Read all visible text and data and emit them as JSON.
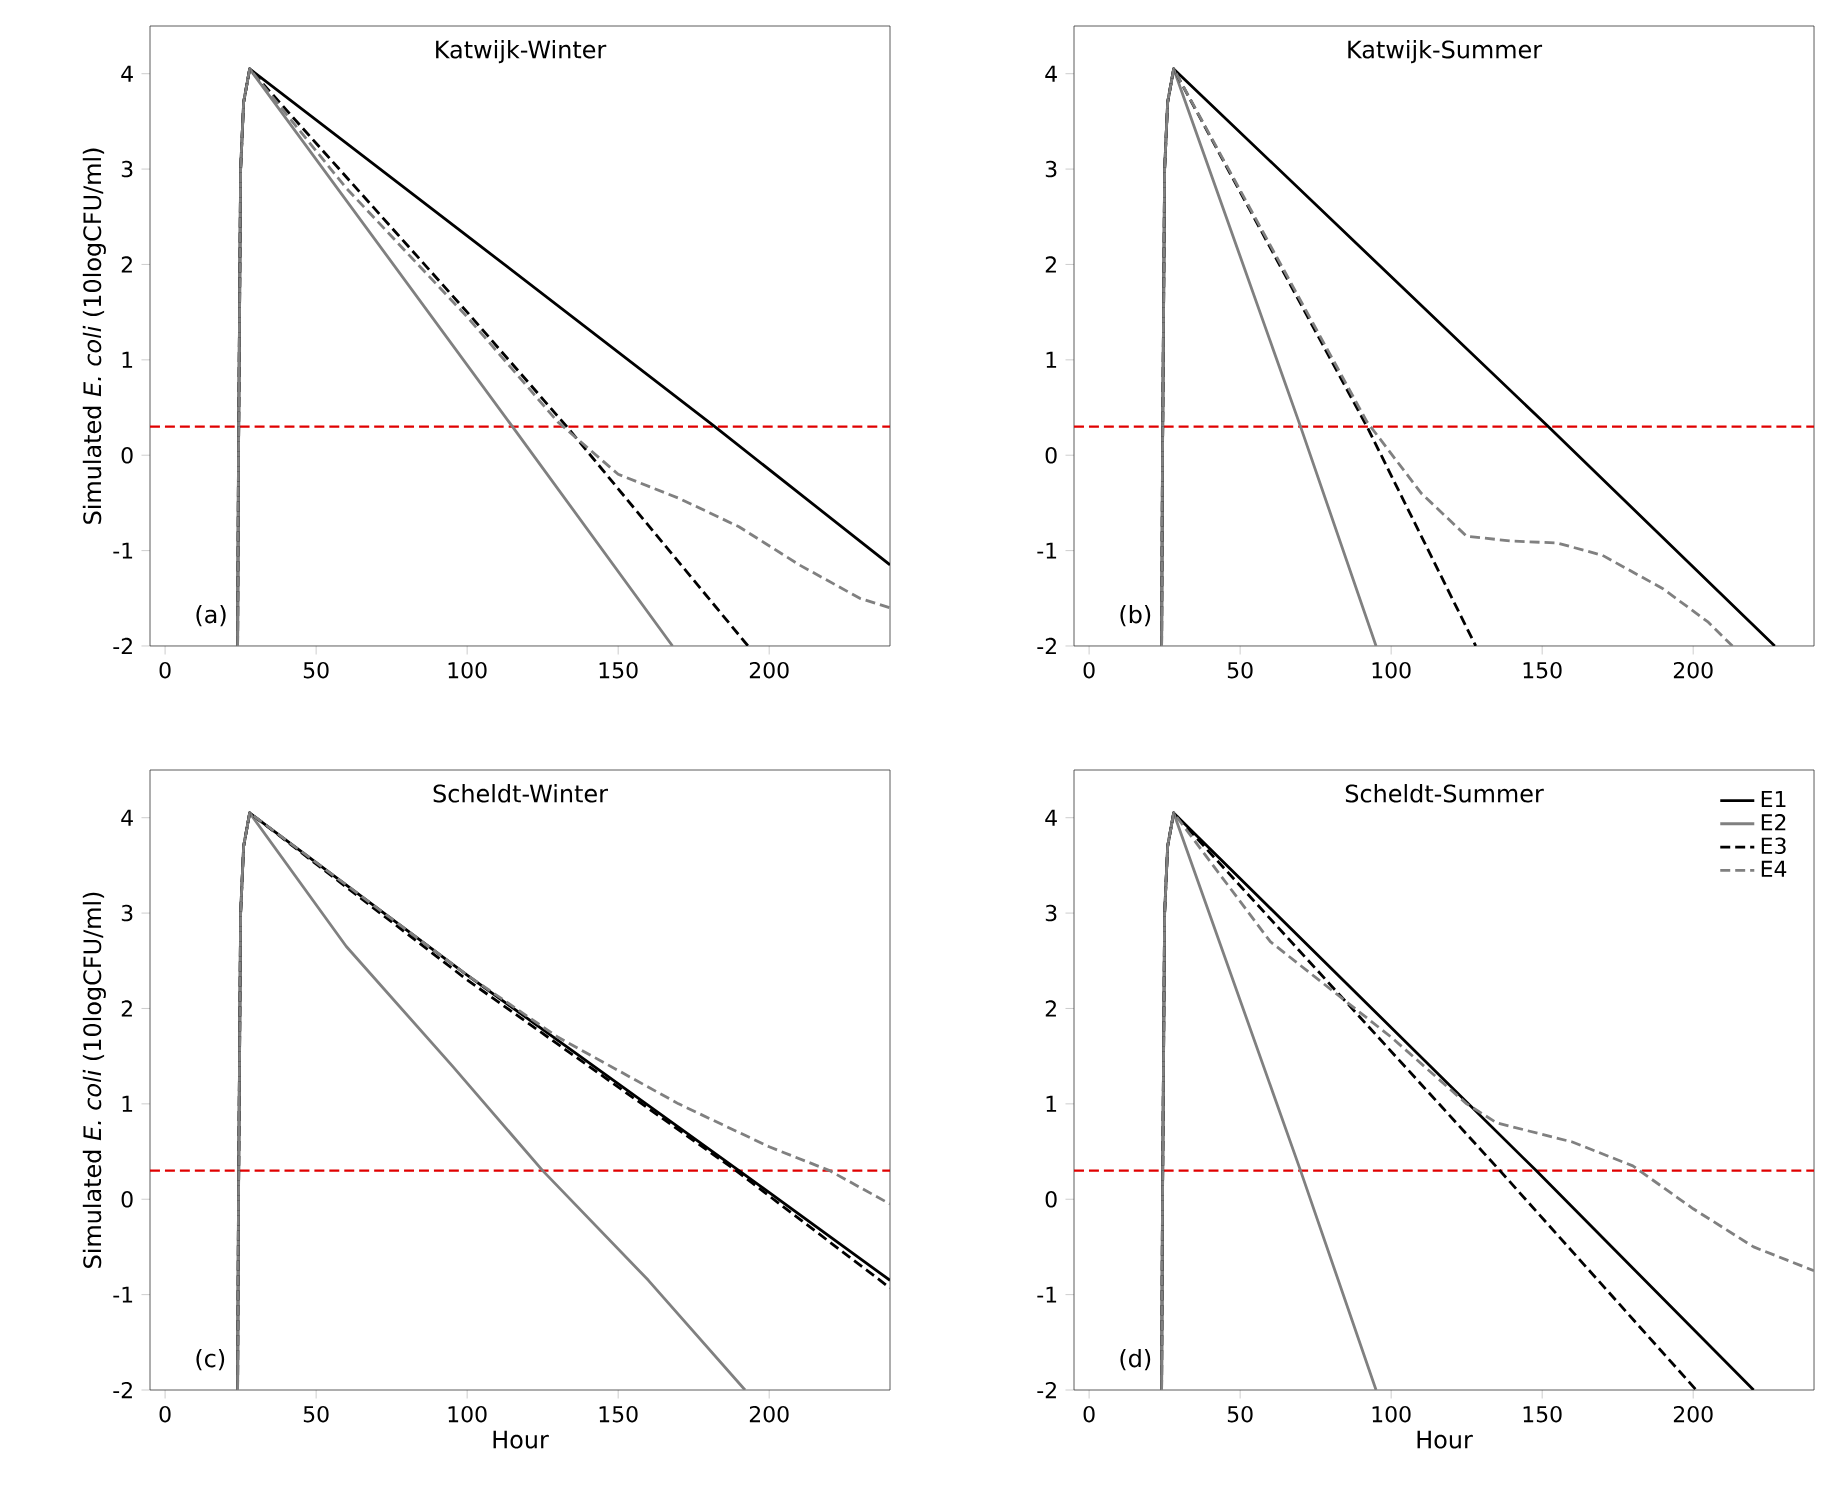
{
  "chart_data": [
    {
      "type": "line",
      "title": "Katwijk-Winter",
      "ylabel": "Simulated *E. coli* (10logCFU/ml)",
      "xlim": [
        -5,
        240
      ],
      "ylim": [
        -2,
        4.5
      ],
      "xticks": [
        0,
        50,
        100,
        150,
        200
      ],
      "yticks": [
        -2,
        -1,
        0,
        1,
        2,
        3,
        4
      ],
      "annotations": [
        "(a)"
      ],
      "ref_lines": [
        {
          "axis": "y",
          "value": 0.3,
          "color": "#e00000",
          "line_style": "dashed"
        }
      ],
      "series": [
        {
          "color": "#000000",
          "line_style": "solid",
          "x": [
            24,
            24.3,
            25,
            26,
            28,
            100,
            182,
            240
          ],
          "values": [
            -2,
            0,
            3,
            3.7,
            4.05,
            2.3,
            0.3,
            -1.15
          ]
        },
        {
          "color": "#808080",
          "line_style": "solid",
          "x": [
            24,
            24.3,
            25,
            26,
            28,
            115,
            168
          ],
          "values": [
            -2,
            0,
            3,
            3.7,
            4.05,
            0.3,
            -2
          ]
        },
        {
          "color": "#000000",
          "line_style": "dashed",
          "x": [
            24,
            24.3,
            25,
            26,
            28,
            100,
            133,
            193
          ],
          "values": [
            -2,
            0,
            3,
            3.7,
            4.05,
            1.5,
            0.3,
            -2
          ]
        },
        {
          "color": "#808080",
          "line_style": "dashed",
          "x": [
            24,
            24.3,
            25,
            26,
            28,
            60,
            100,
            130,
            150,
            170,
            190,
            210,
            230,
            240
          ],
          "values": [
            -2,
            0,
            3,
            3.7,
            4.05,
            2.8,
            1.45,
            0.35,
            -0.2,
            -0.45,
            -0.75,
            -1.15,
            -1.5,
            -1.6
          ]
        }
      ]
    },
    {
      "type": "line",
      "title": "Katwijk-Summer",
      "xlim": [
        -5,
        240
      ],
      "ylim": [
        -2,
        4.5
      ],
      "xticks": [
        0,
        50,
        100,
        150,
        200
      ],
      "yticks": [
        -2,
        -1,
        0,
        1,
        2,
        3,
        4
      ],
      "annotations": [
        "(b)"
      ],
      "ref_lines": [
        {
          "axis": "y",
          "value": 0.3,
          "color": "#e00000",
          "line_style": "dashed"
        }
      ],
      "series": [
        {
          "color": "#000000",
          "line_style": "solid",
          "x": [
            24,
            24.3,
            25,
            26,
            28,
            152,
            227
          ],
          "values": [
            -2,
            0,
            3,
            3.7,
            4.05,
            0.3,
            -2
          ]
        },
        {
          "color": "#808080",
          "line_style": "solid",
          "x": [
            24,
            24.3,
            25,
            26,
            28,
            70,
            95
          ],
          "values": [
            -2,
            0,
            3,
            3.7,
            4.05,
            0.3,
            -2
          ]
        },
        {
          "color": "#000000",
          "line_style": "dashed",
          "x": [
            24,
            24.3,
            25,
            26,
            28,
            92,
            128
          ],
          "values": [
            -2,
            0,
            3,
            3.7,
            4.05,
            0.3,
            -2
          ]
        },
        {
          "color": "#808080",
          "line_style": "dashed",
          "x": [
            24,
            24.3,
            25,
            26,
            28,
            60,
            92,
            110,
            125,
            140,
            155,
            170,
            190,
            205,
            213
          ],
          "values": [
            -2,
            0,
            3,
            3.7,
            4.05,
            2.2,
            0.35,
            -0.4,
            -0.85,
            -0.9,
            -0.92,
            -1.05,
            -1.4,
            -1.75,
            -2
          ]
        }
      ]
    },
    {
      "type": "line",
      "title": "Scheldt-Winter",
      "xlabel": "Hour",
      "ylabel": "Simulated *E. coli* (10logCFU/ml)",
      "xlim": [
        -5,
        240
      ],
      "ylim": [
        -2,
        4.5
      ],
      "xticks": [
        0,
        50,
        100,
        150,
        200
      ],
      "yticks": [
        -2,
        -1,
        0,
        1,
        2,
        3,
        4
      ],
      "annotations": [
        "(c)"
      ],
      "ref_lines": [
        {
          "axis": "y",
          "value": 0.3,
          "color": "#e00000",
          "line_style": "dashed"
        }
      ],
      "series": [
        {
          "color": "#000000",
          "line_style": "solid",
          "x": [
            24,
            24.3,
            25,
            26,
            28,
            100,
            190,
            240
          ],
          "values": [
            -2,
            0,
            3,
            3.7,
            4.05,
            2.35,
            0.3,
            -0.85
          ]
        },
        {
          "color": "#808080",
          "line_style": "solid",
          "x": [
            24,
            24.3,
            25,
            26,
            28,
            60,
            95,
            125,
            160,
            192
          ],
          "values": [
            -2,
            0,
            3,
            3.7,
            4.05,
            2.65,
            1.4,
            0.3,
            -0.85,
            -2
          ]
        },
        {
          "color": "#000000",
          "line_style": "dashed",
          "x": [
            24,
            24.3,
            25,
            26,
            28,
            100,
            189,
            240
          ],
          "values": [
            -2,
            0,
            3,
            3.7,
            4.05,
            2.3,
            0.3,
            -0.93
          ]
        },
        {
          "color": "#808080",
          "line_style": "dashed",
          "x": [
            24,
            24.3,
            25,
            26,
            28,
            100,
            130,
            170,
            200,
            220,
            240
          ],
          "values": [
            -2,
            0,
            3,
            3.7,
            4.05,
            2.35,
            1.7,
            1.0,
            0.55,
            0.3,
            -0.05
          ]
        }
      ]
    },
    {
      "type": "line",
      "title": "Scheldt-Summer",
      "xlabel": "Hour",
      "xlim": [
        -5,
        240
      ],
      "ylim": [
        -2,
        4.5
      ],
      "xticks": [
        0,
        50,
        100,
        150,
        200
      ],
      "yticks": [
        -2,
        -1,
        0,
        1,
        2,
        3,
        4
      ],
      "annotations": [
        "(d)"
      ],
      "ref_lines": [
        {
          "axis": "y",
          "value": 0.3,
          "color": "#e00000",
          "line_style": "dashed"
        }
      ],
      "legend": "top right",
      "series": [
        {
          "name": "E1",
          "color": "#000000",
          "line_style": "solid",
          "x": [
            24,
            24.3,
            25,
            26,
            28,
            148,
            220
          ],
          "values": [
            -2,
            0,
            3,
            3.7,
            4.05,
            0.3,
            -2
          ]
        },
        {
          "name": "E2",
          "color": "#808080",
          "line_style": "solid",
          "x": [
            24,
            24.3,
            25,
            26,
            28,
            70,
            95
          ],
          "values": [
            -2,
            0,
            3,
            3.7,
            4.05,
            0.3,
            -2
          ]
        },
        {
          "name": "E3",
          "color": "#000000",
          "line_style": "dashed",
          "x": [
            24,
            24.3,
            25,
            26,
            28,
            136,
            201
          ],
          "values": [
            -2,
            0,
            3,
            3.7,
            4.05,
            0.3,
            -2
          ]
        },
        {
          "name": "E4",
          "color": "#808080",
          "line_style": "dashed",
          "x": [
            24,
            24.3,
            25,
            26,
            28,
            60,
            100,
            125,
            135,
            160,
            180,
            200,
            220,
            240
          ],
          "values": [
            -2,
            0,
            3,
            3.7,
            4.05,
            2.7,
            1.7,
            1.0,
            0.8,
            0.6,
            0.35,
            -0.1,
            -0.5,
            -0.75
          ]
        }
      ]
    }
  ]
}
